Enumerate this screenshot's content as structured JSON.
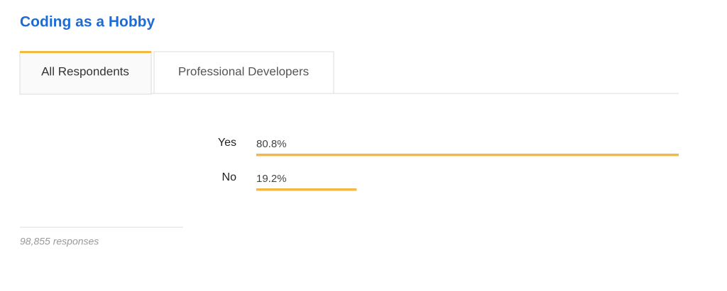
{
  "tabs": [
    "All Respondents",
    "Professional Developers"
  ],
  "footnote": "98,855 responses",
  "chart_data": {
    "type": "bar",
    "orientation": "horizontal",
    "title": "Coding as a Hobby",
    "categories": [
      "Yes",
      "No"
    ],
    "values": [
      80.8,
      19.2
    ],
    "value_labels": [
      "80.8%",
      "19.2%"
    ],
    "color": "#f4b942"
  }
}
